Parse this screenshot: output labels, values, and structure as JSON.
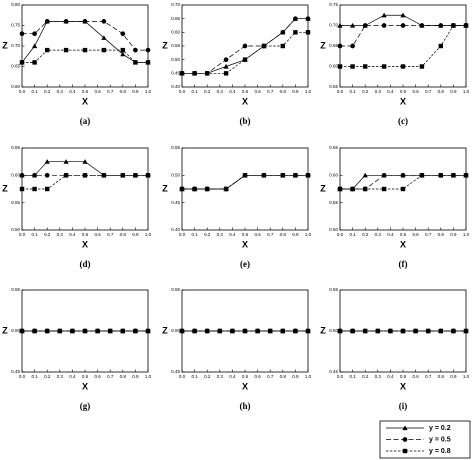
{
  "chart_data": [
    {
      "type": "line",
      "caption": "(a)",
      "xlabel": "X",
      "ylabel": "Z",
      "xlim": [
        0,
        1
      ],
      "ylim": [
        0.6,
        0.8
      ],
      "xticks": [
        {
          "value": 0,
          "label": "0.0"
        },
        0.1,
        0.2,
        0.3,
        0.4,
        0.5,
        0.6,
        0.7,
        0.8,
        0.9,
        {
          "value": 1,
          "label": "1.0"
        }
      ],
      "yticks": [
        {
          "value": 0.6,
          "label": "0.60"
        },
        0.65,
        {
          "value": 0.7,
          "label": "0.70"
        },
        0.75,
        {
          "value": 0.8,
          "label": "0.80"
        }
      ],
      "x": [
        0,
        0.1,
        0.2,
        0.35,
        0.5,
        0.65,
        0.8,
        0.9,
        1
      ],
      "series": [
        {
          "color": "#000000",
          "marker": "triangle",
          "dash": "solid",
          "values": [
            0.66,
            0.7,
            0.76,
            0.76,
            0.76,
            0.72,
            0.68,
            0.66,
            0.66
          ]
        },
        {
          "color": "#000000",
          "marker": "circle",
          "dash": "dashed",
          "values": [
            0.73,
            0.73,
            0.76,
            0.76,
            0.76,
            0.76,
            0.73,
            0.69,
            0.69
          ]
        },
        {
          "color": "#000000",
          "marker": "square",
          "dash": "dotted",
          "values": [
            0.66,
            0.66,
            0.69,
            0.69,
            0.69,
            0.69,
            0.69,
            0.66,
            0.66
          ]
        }
      ]
    },
    {
      "type": "line",
      "caption": "(b)",
      "xlabel": "X",
      "ylabel": "Z",
      "xlim": [
        0,
        1
      ],
      "ylim": [
        0.4,
        0.7
      ],
      "xticks": [
        {
          "value": 0,
          "label": "0.0"
        },
        0.1,
        0.2,
        0.3,
        0.4,
        0.5,
        0.6,
        0.7,
        0.8,
        0.9,
        {
          "value": 1,
          "label": "1.0"
        }
      ],
      "yticks": [
        {
          "value": 0.4,
          "label": "0.40"
        },
        0.45,
        {
          "value": 0.5,
          "label": "0.50"
        },
        0.55,
        {
          "value": 0.6,
          "label": "0.60"
        },
        0.65,
        {
          "value": 0.7,
          "label": "0.70"
        }
      ],
      "x": [
        0,
        0.1,
        0.2,
        0.35,
        0.5,
        0.65,
        0.8,
        0.9,
        1
      ],
      "series": [
        {
          "color": "#000000",
          "marker": "triangle",
          "dash": "solid",
          "values": [
            0.45,
            0.45,
            0.45,
            0.475,
            0.5,
            0.55,
            0.6,
            0.65,
            0.65
          ]
        },
        {
          "color": "#000000",
          "marker": "circle",
          "dash": "dashed",
          "values": [
            0.45,
            0.45,
            0.45,
            0.5,
            0.55,
            0.55,
            0.6,
            0.65,
            0.65
          ]
        },
        {
          "color": "#000000",
          "marker": "square",
          "dash": "dotted",
          "values": [
            0.45,
            0.45,
            0.45,
            0.45,
            0.5,
            0.55,
            0.55,
            0.6,
            0.6
          ]
        }
      ]
    },
    {
      "type": "line",
      "caption": "(c)",
      "xlabel": "X",
      "ylabel": "Z",
      "xlim": [
        0,
        1
      ],
      "ylim": [
        0.55,
        0.75
      ],
      "xticks": [
        {
          "value": 0,
          "label": "0.0"
        },
        0.1,
        0.2,
        0.3,
        0.4,
        0.5,
        0.6,
        0.7,
        0.8,
        0.9,
        {
          "value": 1,
          "label": "1.0"
        }
      ],
      "yticks": [
        0.55,
        {
          "value": 0.6,
          "label": "0.60"
        },
        0.65,
        {
          "value": 0.7,
          "label": "0.70"
        },
        0.75
      ],
      "x": [
        0,
        0.1,
        0.2,
        0.35,
        0.5,
        0.65,
        0.8,
        0.9,
        1
      ],
      "series": [
        {
          "color": "#000000",
          "marker": "triangle",
          "dash": "solid",
          "values": [
            0.7,
            0.7,
            0.7,
            0.725,
            0.725,
            0.7,
            0.7,
            0.7,
            0.7
          ]
        },
        {
          "color": "#000000",
          "marker": "circle",
          "dash": "dashed",
          "values": [
            0.65,
            0.65,
            0.7,
            0.7,
            0.7,
            0.7,
            0.7,
            0.7,
            0.7
          ]
        },
        {
          "color": "#000000",
          "marker": "square",
          "dash": "dotted",
          "values": [
            0.6,
            0.6,
            0.6,
            0.6,
            0.6,
            0.6,
            0.65,
            0.7,
            0.7
          ]
        }
      ]
    },
    {
      "type": "line",
      "caption": "(d)",
      "xlabel": "X",
      "ylabel": "Z",
      "xlim": [
        0,
        1
      ],
      "ylim": [
        0.5,
        0.65
      ],
      "xticks": [
        {
          "value": 0,
          "label": "0.0"
        },
        0.1,
        0.2,
        0.3,
        0.4,
        0.5,
        0.6,
        0.7,
        0.8,
        0.9,
        {
          "value": 1,
          "label": "1.0"
        }
      ],
      "yticks": [
        {
          "value": 0.5,
          "label": "0.50"
        },
        0.55,
        {
          "value": 0.6,
          "label": "0.60"
        },
        0.65
      ],
      "x": [
        0,
        0.1,
        0.2,
        0.35,
        0.5,
        0.65,
        0.8,
        0.9,
        1
      ],
      "series": [
        {
          "color": "#000000",
          "marker": "triangle",
          "dash": "solid",
          "values": [
            0.6,
            0.6,
            0.625,
            0.625,
            0.625,
            0.6,
            0.6,
            0.6,
            0.6
          ]
        },
        {
          "color": "#000000",
          "marker": "circle",
          "dash": "dashed",
          "values": [
            0.6,
            0.6,
            0.6,
            0.6,
            0.6,
            0.6,
            0.6,
            0.6,
            0.6
          ]
        },
        {
          "color": "#000000",
          "marker": "square",
          "dash": "dotted",
          "values": [
            0.575,
            0.575,
            0.575,
            0.6,
            0.6,
            0.6,
            0.6,
            0.6,
            0.6
          ]
        }
      ]
    },
    {
      "type": "line",
      "caption": "(e)",
      "xlabel": "X",
      "ylabel": "Z",
      "xlim": [
        0,
        1
      ],
      "ylim": [
        0.4,
        0.55
      ],
      "xticks": [
        {
          "value": 0,
          "label": "0.0"
        },
        0.1,
        0.2,
        0.3,
        0.4,
        0.5,
        0.6,
        0.7,
        0.8,
        0.9,
        {
          "value": 1,
          "label": "1.0"
        }
      ],
      "yticks": [
        {
          "value": 0.4,
          "label": "0.40"
        },
        0.45,
        {
          "value": 0.5,
          "label": "0.50"
        },
        0.55
      ],
      "x": [
        0,
        0.1,
        0.2,
        0.35,
        0.5,
        0.65,
        0.8,
        0.9,
        1
      ],
      "series": [
        {
          "color": "#000000",
          "marker": "triangle",
          "dash": "solid",
          "values": [
            0.475,
            0.475,
            0.475,
            0.475,
            0.5,
            0.5,
            0.5,
            0.5,
            0.5
          ]
        },
        {
          "color": "#000000",
          "marker": "circle",
          "dash": "dashed",
          "values": [
            0.475,
            0.475,
            0.475,
            0.475,
            0.5,
            0.5,
            0.5,
            0.5,
            0.5
          ]
        },
        {
          "color": "#000000",
          "marker": "square",
          "dash": "dotted",
          "values": [
            0.475,
            0.475,
            0.475,
            0.475,
            0.5,
            0.5,
            0.5,
            0.5,
            0.5
          ]
        }
      ]
    },
    {
      "type": "line",
      "caption": "(f)",
      "xlabel": "X",
      "ylabel": "Z",
      "xlim": [
        0,
        1
      ],
      "ylim": [
        0.5,
        0.65
      ],
      "xticks": [
        {
          "value": 0,
          "label": "0.0"
        },
        0.1,
        0.2,
        0.3,
        0.4,
        0.5,
        0.6,
        0.7,
        0.8,
        0.9,
        {
          "value": 1,
          "label": "1.0"
        }
      ],
      "yticks": [
        {
          "value": 0.5,
          "label": "0.50"
        },
        0.55,
        {
          "value": 0.6,
          "label": "0.60"
        },
        0.65
      ],
      "x": [
        0,
        0.1,
        0.2,
        0.35,
        0.5,
        0.65,
        0.8,
        0.9,
        1
      ],
      "series": [
        {
          "color": "#000000",
          "marker": "triangle",
          "dash": "solid",
          "values": [
            0.575,
            0.575,
            0.6,
            0.6,
            0.6,
            0.6,
            0.6,
            0.6,
            0.6
          ]
        },
        {
          "color": "#000000",
          "marker": "circle",
          "dash": "dashed",
          "values": [
            0.575,
            0.575,
            0.575,
            0.6,
            0.6,
            0.6,
            0.6,
            0.6,
            0.6
          ]
        },
        {
          "color": "#000000",
          "marker": "square",
          "dash": "dotted",
          "values": [
            0.575,
            0.575,
            0.575,
            0.575,
            0.575,
            0.6,
            0.6,
            0.6,
            0.6
          ]
        }
      ]
    },
    {
      "type": "line",
      "caption": "(g)",
      "xlabel": "X",
      "ylabel": "Z",
      "xlim": [
        0,
        1
      ],
      "ylim": [
        0.45,
        0.55
      ],
      "xticks": [
        {
          "value": 0,
          "label": "0.0"
        },
        0.1,
        0.2,
        0.3,
        0.4,
        0.5,
        0.6,
        0.7,
        0.8,
        0.9,
        {
          "value": 1,
          "label": "1.0"
        }
      ],
      "yticks": [
        0.45,
        {
          "value": 0.5,
          "label": "0.50"
        },
        0.55
      ],
      "x": [
        0,
        0.1,
        0.2,
        0.3,
        0.4,
        0.5,
        0.6,
        0.7,
        0.8,
        0.9,
        1
      ],
      "series": [
        {
          "color": "#000000",
          "marker": "triangle",
          "dash": "solid",
          "values": [
            0.5,
            0.5,
            0.5,
            0.5,
            0.5,
            0.5,
            0.5,
            0.5,
            0.5,
            0.5,
            0.5
          ]
        },
        {
          "color": "#000000",
          "marker": "circle",
          "dash": "dashed",
          "values": [
            0.5,
            0.5,
            0.5,
            0.5,
            0.5,
            0.5,
            0.5,
            0.5,
            0.5,
            0.5,
            0.5
          ]
        },
        {
          "color": "#000000",
          "marker": "square",
          "dash": "dotted",
          "values": [
            0.5,
            0.5,
            0.5,
            0.5,
            0.5,
            0.5,
            0.5,
            0.5,
            0.5,
            0.5,
            0.5
          ]
        }
      ]
    },
    {
      "type": "line",
      "caption": "(h)",
      "xlabel": "X",
      "ylabel": "Z",
      "xlim": [
        0,
        1
      ],
      "ylim": [
        0.45,
        0.55
      ],
      "xticks": [
        {
          "value": 0,
          "label": "0.0"
        },
        0.1,
        0.2,
        0.3,
        0.4,
        0.5,
        0.6,
        0.7,
        0.8,
        0.9,
        {
          "value": 1,
          "label": "1.0"
        }
      ],
      "yticks": [
        0.45,
        {
          "value": 0.5,
          "label": "0.50"
        },
        0.55
      ],
      "x": [
        0,
        0.1,
        0.2,
        0.3,
        0.4,
        0.5,
        0.6,
        0.7,
        0.8,
        0.9,
        1
      ],
      "series": [
        {
          "color": "#000000",
          "marker": "triangle",
          "dash": "solid",
          "values": [
            0.5,
            0.5,
            0.5,
            0.5,
            0.5,
            0.5,
            0.5,
            0.5,
            0.5,
            0.5,
            0.5
          ]
        },
        {
          "color": "#000000",
          "marker": "circle",
          "dash": "dashed",
          "values": [
            0.5,
            0.5,
            0.5,
            0.5,
            0.5,
            0.5,
            0.5,
            0.5,
            0.5,
            0.5,
            0.5
          ]
        },
        {
          "color": "#000000",
          "marker": "square",
          "dash": "dotted",
          "values": [
            0.5,
            0.5,
            0.5,
            0.5,
            0.5,
            0.5,
            0.5,
            0.5,
            0.5,
            0.5,
            0.5
          ]
        }
      ]
    },
    {
      "type": "line",
      "caption": "(i)",
      "xlabel": "X",
      "ylabel": "Z",
      "xlim": [
        0,
        1
      ],
      "ylim": [
        0.45,
        0.55
      ],
      "legend": "below",
      "xticks": [
        {
          "value": 0,
          "label": "0.0"
        },
        0.1,
        0.2,
        0.3,
        0.4,
        0.5,
        0.6,
        0.7,
        0.8,
        0.9,
        {
          "value": 1,
          "label": "1.0"
        }
      ],
      "yticks": [
        0.45,
        {
          "value": 0.5,
          "label": "0.50"
        },
        0.55
      ],
      "x": [
        0,
        0.1,
        0.2,
        0.3,
        0.4,
        0.5,
        0.6,
        0.7,
        0.8,
        0.9,
        1
      ],
      "series": [
        {
          "name": "y = 0.2",
          "color": "#000000",
          "marker": "triangle",
          "dash": "solid",
          "values": [
            0.5,
            0.5,
            0.5,
            0.5,
            0.5,
            0.5,
            0.5,
            0.5,
            0.5,
            0.5,
            0.5
          ]
        },
        {
          "name": "y = 0.5",
          "color": "#000000",
          "marker": "circle",
          "dash": "dashed",
          "values": [
            0.5,
            0.5,
            0.5,
            0.5,
            0.5,
            0.5,
            0.5,
            0.5,
            0.5,
            0.5,
            0.5
          ]
        },
        {
          "name": "y = 0.8",
          "color": "#000000",
          "marker": "square",
          "dash": "dotted",
          "values": [
            0.5,
            0.5,
            0.5,
            0.5,
            0.5,
            0.5,
            0.5,
            0.5,
            0.5,
            0.5,
            0.5
          ]
        }
      ]
    }
  ]
}
